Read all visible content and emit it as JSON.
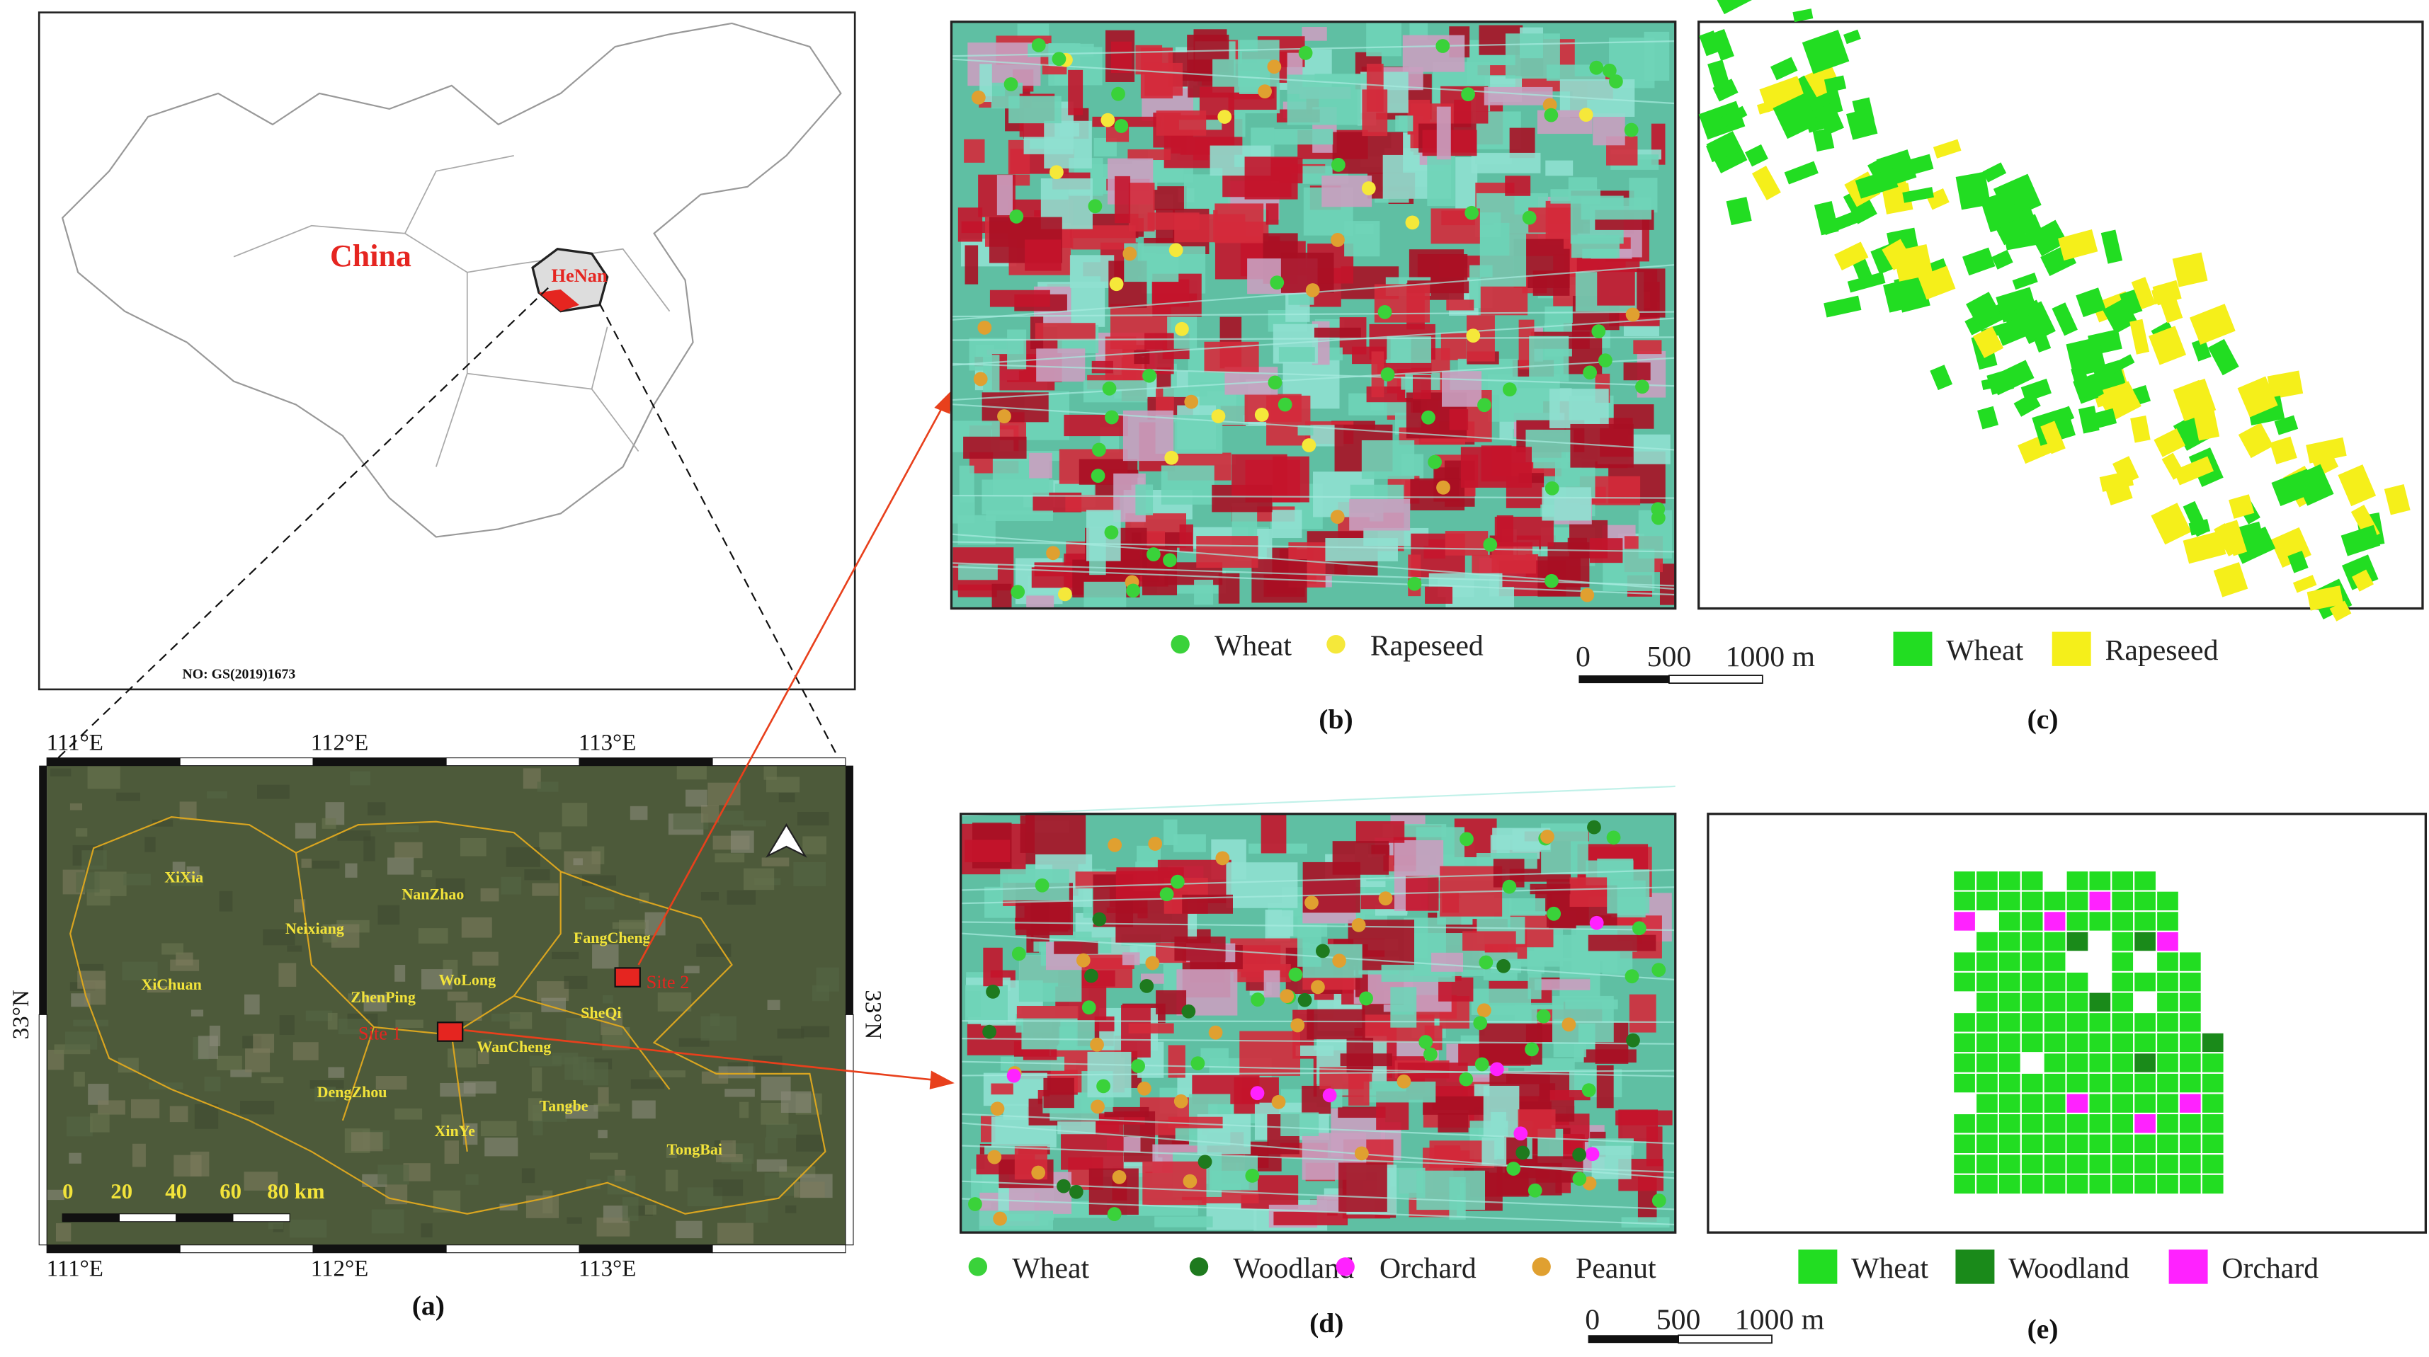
{
  "panel_a": {
    "label": "(a)",
    "overview": {
      "country": "China",
      "province": "HeNan",
      "map_no": "NO: GS(2019)1673"
    },
    "lon_labels": [
      "111°E",
      "112°E",
      "113°E"
    ],
    "lat_label": "33°N",
    "places": [
      "XiXia",
      "NanZhao",
      "Neixiang",
      "FangCheng",
      "XiChuan",
      "ZhenPing",
      "WoLong",
      "SheQi",
      "WanCheng",
      "DengZhou",
      "Tangbe",
      "XinYe",
      "TongBai"
    ],
    "sites": [
      "Site 1",
      "Site 2"
    ],
    "scale_ticks": [
      "0",
      "20",
      "40",
      "60",
      "80 km"
    ]
  },
  "panel_b": {
    "label": "(b)",
    "legend": [
      "Wheat",
      "Rapeseed"
    ]
  },
  "panel_c": {
    "label": "(c)",
    "legend": [
      "Wheat",
      "Rapeseed"
    ],
    "scale_ticks": [
      "0",
      "500",
      "1000 m"
    ]
  },
  "panel_d": {
    "label": "(d)",
    "legend": [
      "Wheat",
      "Woodland",
      "Orchard",
      "Peanut"
    ]
  },
  "panel_e": {
    "label": "(e)",
    "legend": [
      "Wheat",
      "Woodland",
      "Orchard"
    ],
    "scale_ticks": [
      "0",
      "500",
      "1000 m"
    ]
  }
}
